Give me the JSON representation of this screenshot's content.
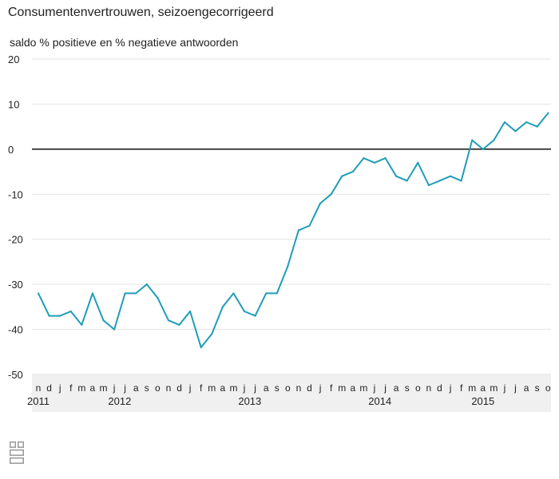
{
  "chart_data": {
    "type": "line",
    "title": "Consumentenvertrouwen, seizoengecorrigeerd",
    "subtitle": "saldo % positieve en % negatieve antwoorden",
    "ylim": [
      -50,
      20
    ],
    "yticks": [
      20,
      10,
      0,
      -10,
      -20,
      -30,
      -40,
      -50
    ],
    "month_labels": [
      "n",
      "d",
      "j",
      "f",
      "m",
      "a",
      "m",
      "j",
      "j",
      "a",
      "s",
      "o",
      "n",
      "d",
      "j",
      "f",
      "m",
      "a",
      "m",
      "j",
      "j",
      "a",
      "s",
      "o",
      "n",
      "d",
      "j",
      "f",
      "m",
      "a",
      "m",
      "j",
      "j",
      "a",
      "s",
      "o",
      "n",
      "d",
      "j",
      "f",
      "m",
      "a",
      "m",
      "j",
      "j",
      "a",
      "s",
      "o"
    ],
    "year_labels": [
      {
        "label": "2011",
        "index": 0
      },
      {
        "label": "2012",
        "index": 7.5
      },
      {
        "label": "2013",
        "index": 19.5
      },
      {
        "label": "2014",
        "index": 31.5
      },
      {
        "label": "2015",
        "index": 41
      }
    ],
    "grid": true,
    "zero_line": true,
    "series": [
      {
        "color": "#1f9db8",
        "values": [
          -32,
          -37,
          -37,
          -36,
          -39,
          -32,
          -38,
          -40,
          -32,
          -32,
          -30,
          -33,
          -38,
          -39,
          -36,
          -44,
          -41,
          -35,
          -32,
          -36,
          -37,
          -32,
          -32,
          -26,
          -18,
          -17,
          -12,
          -10,
          -6,
          -5,
          -2,
          -3,
          -2,
          -6,
          -7,
          -3,
          -8,
          -7,
          -6,
          -7,
          2,
          0,
          2,
          6,
          4,
          6,
          5,
          8
        ]
      }
    ]
  }
}
